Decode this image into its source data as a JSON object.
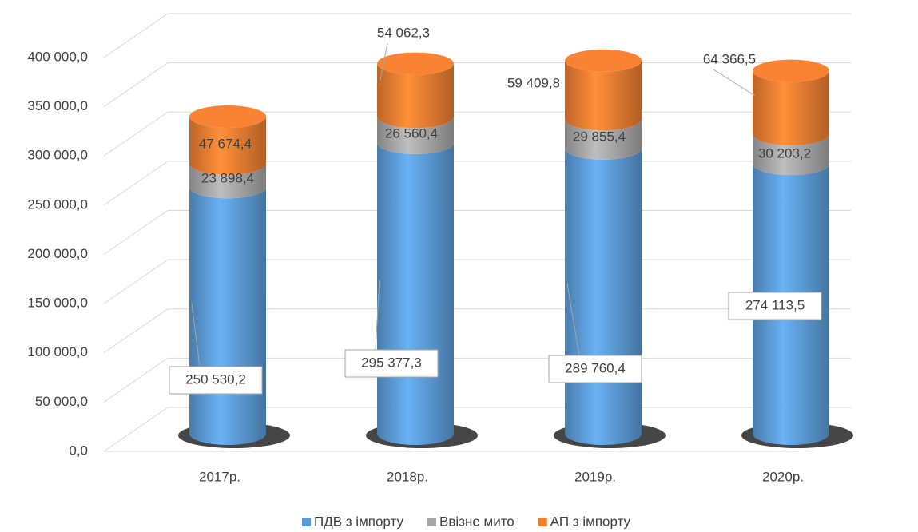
{
  "chart_data": {
    "type": "bar3d_stacked",
    "categories": [
      "2017р.",
      "2018р.",
      "2019р.",
      "2020р."
    ],
    "series": [
      {
        "name": "ПДВ з імпорту",
        "color": "#5b9bd5",
        "values": [
          250530.2,
          295377.3,
          289760.4,
          274113.5
        ],
        "value_labels": [
          "250 530,2",
          "295 377,3",
          "289 760,4",
          "274 113,5"
        ]
      },
      {
        "name": "Ввізне мито",
        "color": "#a5a5a5",
        "values": [
          23898.4,
          26560.4,
          29855.4,
          30203.2
        ],
        "value_labels": [
          "23 898,4",
          "26 560,4",
          "29 855,4",
          "30 203,2"
        ]
      },
      {
        "name": "АП з імпорту",
        "color": "#ed7d31",
        "values": [
          47674.4,
          54062.3,
          59409.8,
          64366.5
        ],
        "value_labels": [
          "47 674,4",
          "54 062,3",
          "59 409,8",
          "64 366,5"
        ]
      }
    ],
    "ylim": [
      0,
      400000
    ],
    "yticks": [
      {
        "value": 0,
        "label": "0,0"
      },
      {
        "value": 50000,
        "label": "50 000,0"
      },
      {
        "value": 100000,
        "label": "100 000,0"
      },
      {
        "value": 150000,
        "label": "150 000,0"
      },
      {
        "value": 200000,
        "label": "200 000,0"
      },
      {
        "value": 250000,
        "label": "250 000,0"
      },
      {
        "value": 300000,
        "label": "300 000,0"
      },
      {
        "value": 350000,
        "label": "350 000,0"
      },
      {
        "value": 400000,
        "label": "400 000,0"
      }
    ],
    "grid": true,
    "legend": "bottom"
  }
}
